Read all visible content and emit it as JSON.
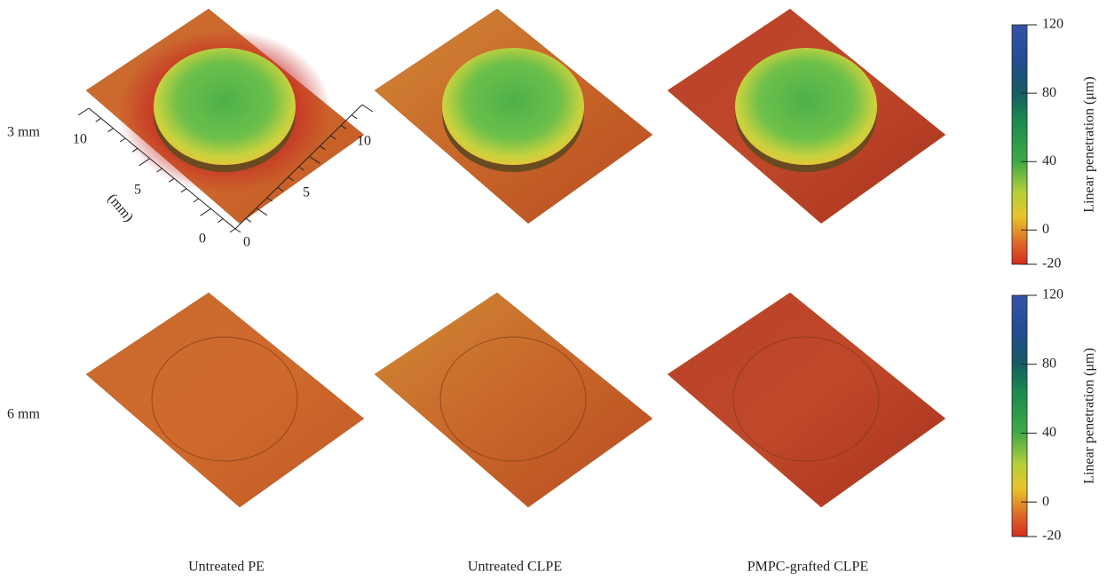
{
  "rows": [
    {
      "label": "3 mm"
    },
    {
      "label": "6 mm"
    }
  ],
  "columns": [
    "Untreated PE",
    "Untreated CLPE",
    "PMPC-grafted CLPE"
  ],
  "axes": {
    "left_ticks": [
      10,
      5,
      0
    ],
    "right_ticks": [
      10,
      5,
      0
    ],
    "unit": "(mm)"
  },
  "colorbars": [
    {
      "label": "Linear penetration (μm)",
      "lim": [
        -20,
        120
      ],
      "ticks": [
        120,
        80,
        40,
        0,
        -20
      ]
    },
    {
      "label": "Linear penetration (μm)",
      "lim": [
        -20,
        120
      ],
      "ticks": [
        120,
        80,
        40,
        0,
        -20
      ]
    }
  ]
}
